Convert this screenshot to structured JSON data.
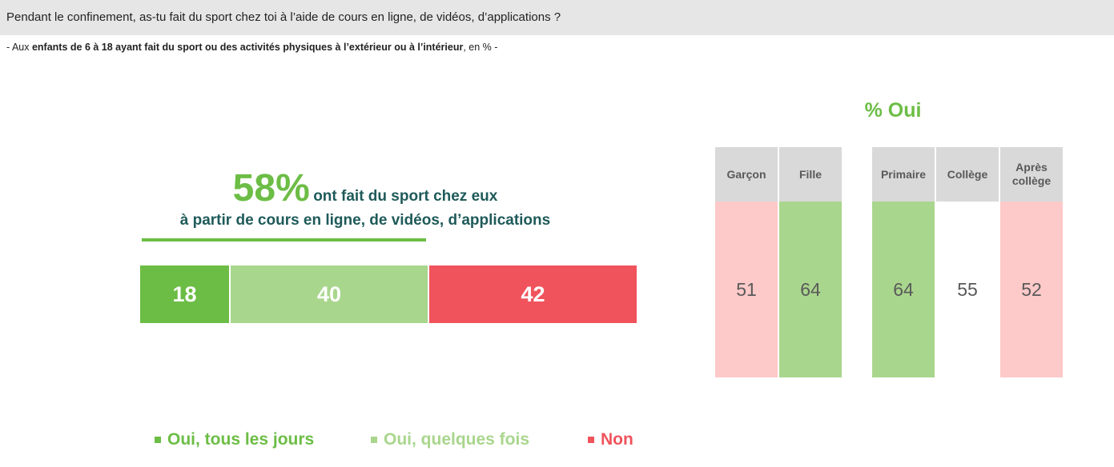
{
  "header": {
    "question": "Pendant le confinement, as-tu fait du sport chez toi à l’aide de cours en ligne, de vidéos, d’applications ?"
  },
  "subtitle": {
    "prefix": "- Aux ",
    "bold": "enfants de 6 à 18 ayant fait du sport ou des activités physiques à l’extérieur ou à l’intérieur",
    "suffix": ", en % -"
  },
  "headline": {
    "percent": "58%",
    "line1": "ont fait du sport chez eux",
    "line2": "à partir de cours en ligne, de vidéos, d’applications"
  },
  "colors": {
    "dark_green": "#6cbd45",
    "light_green": "#a9d68d",
    "red": "#f0535c",
    "pink": "#fdc9c9",
    "header_gray": "#d9d9d9"
  },
  "chart_data": [
    {
      "type": "bar",
      "orientation": "horizontal-stacked",
      "categories": [
        "Oui, tous les jours",
        "Oui, quelques fois",
        "Non"
      ],
      "values": [
        18,
        40,
        42
      ],
      "colors": [
        "#6cbd45",
        "#a9d68d",
        "#f0535c"
      ],
      "legend": "bottom"
    },
    {
      "type": "table",
      "title": "% Oui",
      "groups": [
        {
          "cells": [
            {
              "label": "Garçon",
              "value": 51,
              "color": "#fdc9c9"
            },
            {
              "label": "Fille",
              "value": 64,
              "color": "#a9d68d"
            }
          ]
        },
        {
          "cells": [
            {
              "label": "Primaire",
              "value": 64,
              "color": "#a9d68d"
            },
            {
              "label": "Collège",
              "value": 55,
              "color": "#ffffff"
            },
            {
              "label": "Après collège",
              "value": 52,
              "color": "#fdc9c9"
            }
          ]
        }
      ]
    }
  ]
}
